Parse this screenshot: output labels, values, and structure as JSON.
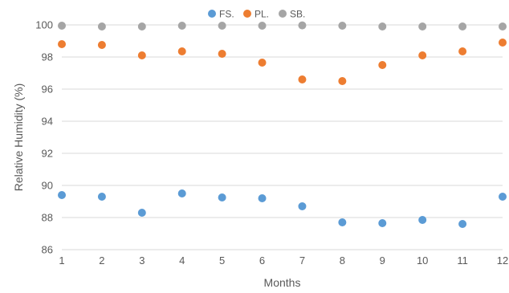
{
  "chart_data": {
    "type": "scatter",
    "title": "",
    "xlabel": "Months",
    "ylabel": "Relative Humidity (%)",
    "x": [
      1,
      2,
      3,
      4,
      5,
      6,
      7,
      8,
      9,
      10,
      11,
      12
    ],
    "xlim": [
      1,
      12
    ],
    "ylim": [
      86,
      100
    ],
    "yticks": [
      86,
      88,
      90,
      92,
      94,
      96,
      98,
      100
    ],
    "grid": true,
    "legend_position": "top",
    "series": [
      {
        "name": "FS.",
        "color": "#5b9bd5",
        "values": [
          89.4,
          89.3,
          88.3,
          89.5,
          89.25,
          89.2,
          88.7,
          87.7,
          87.65,
          87.85,
          87.6,
          89.3
        ]
      },
      {
        "name": "PL.",
        "color": "#ed7d31",
        "values": [
          98.8,
          98.75,
          98.1,
          98.35,
          98.2,
          97.65,
          96.6,
          96.5,
          97.5,
          98.1,
          98.35,
          98.9
        ]
      },
      {
        "name": "SB.",
        "color": "#a5a5a5",
        "values": [
          99.95,
          99.9,
          99.9,
          99.95,
          99.95,
          99.95,
          99.97,
          99.95,
          99.9,
          99.9,
          99.9,
          99.9
        ]
      }
    ]
  }
}
